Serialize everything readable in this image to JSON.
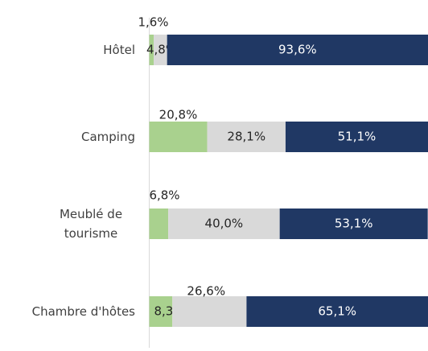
{
  "chart_data": {
    "type": "stacked-bar-horizontal",
    "categories": [
      "Hôtel",
      "Camping",
      "Meublé de tourisme",
      "Chambre d'hôtes"
    ],
    "series": [
      {
        "color": "#a9d18e",
        "values": [
          1.6,
          20.8,
          6.8,
          8.3
        ],
        "value_labels": [
          "1,6%",
          "20,8%",
          "6,8%",
          "8,3%"
        ]
      },
      {
        "color": "#d9d9d9",
        "values": [
          4.8,
          28.1,
          40.0,
          26.6
        ],
        "value_labels": [
          "4,8%",
          "28,1%",
          "40,0%",
          "26,6%"
        ]
      },
      {
        "color": "#203864",
        "values": [
          93.6,
          51.1,
          53.1,
          65.1
        ],
        "value_labels": [
          "93,6%",
          "51,1%",
          "53,1%",
          "65,1%"
        ]
      }
    ],
    "xlim": [
      0,
      100
    ]
  }
}
